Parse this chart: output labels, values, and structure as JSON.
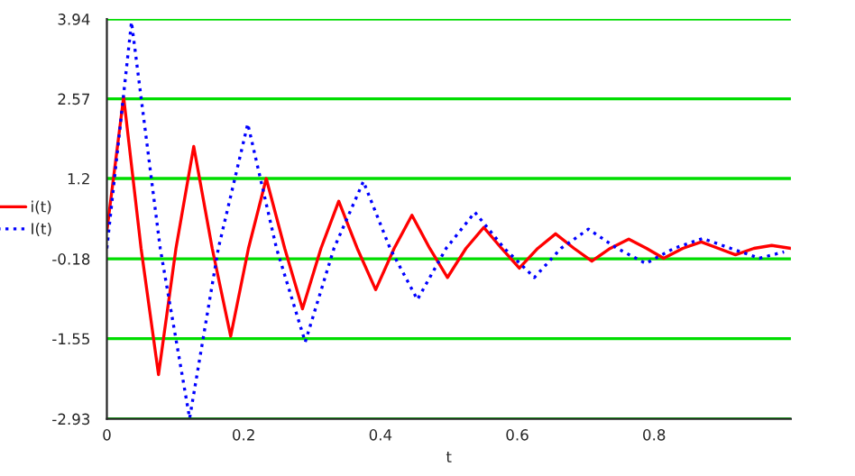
{
  "chart_data": {
    "type": "line",
    "xlabel": "t",
    "series": [
      {
        "name": "i(t)",
        "color": "#ff0000",
        "line_style": "solid",
        "x": [
          0,
          0.0245,
          0.05,
          0.0755,
          0.101,
          0.127,
          0.154,
          0.181,
          0.207,
          0.233,
          0.26,
          0.286,
          0.313,
          0.339,
          0.366,
          0.393,
          0.42,
          0.446,
          0.472,
          0.498,
          0.525,
          0.551,
          0.577,
          0.603,
          0.63,
          0.656,
          0.683,
          0.709,
          0.736,
          0.763,
          0.789,
          0.814,
          0.842,
          0.869,
          0.894,
          0.919,
          0.946,
          0.972,
          1.0
        ],
        "values": [
          0.3,
          2.6,
          0,
          -2.17,
          0,
          1.75,
          0,
          -1.51,
          0,
          1.2,
          0,
          -1.04,
          0,
          0.81,
          0,
          -0.71,
          0,
          0.57,
          0,
          -0.5,
          0,
          0.36,
          0,
          -0.34,
          0,
          0.25,
          0,
          -0.22,
          0,
          0.16,
          0,
          -0.17,
          0,
          0.11,
          0,
          -0.11,
          0,
          0.05,
          0
        ]
      },
      {
        "name": "I(t)",
        "color": "#0000ff",
        "line_style": "dotted",
        "x": [
          0,
          0.036,
          0.078,
          0.121,
          0.163,
          0.206,
          0.248,
          0.29,
          0.332,
          0.375,
          0.414,
          0.454,
          0.496,
          0.538,
          0.581,
          0.625,
          0.664,
          0.704,
          0.746,
          0.788,
          0.829,
          0.871,
          0.912,
          0.954,
          0.99
        ],
        "values": [
          0,
          3.89,
          0,
          -2.92,
          0,
          2.14,
          0,
          -1.61,
          0,
          1.15,
          0,
          -0.88,
          0,
          0.62,
          0,
          -0.5,
          0,
          0.33,
          0,
          -0.26,
          0,
          0.17,
          0,
          -0.17,
          -0.06
        ]
      }
    ],
    "xlim": [
      0,
      1
    ],
    "xticks": [
      0,
      0.2,
      0.4,
      0.6,
      0.8
    ],
    "ylim": [
      -2.93,
      3.94
    ],
    "yticks": [
      3.94,
      2.57,
      1.2,
      -0.18,
      -1.55,
      -2.93
    ],
    "grid": "y",
    "legend": "left"
  }
}
